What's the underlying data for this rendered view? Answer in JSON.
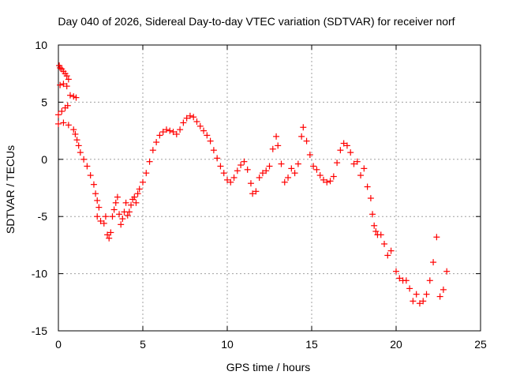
{
  "chart_data": {
    "type": "scatter",
    "title": "Day 040 of 2026, Sidereal Day-to-day VTEC variation (SDTVAR) for receiver norf",
    "xlabel": "GPS time / hours",
    "ylabel": "SDTVAR / TECUs",
    "xlim": [
      0,
      25
    ],
    "ylim": [
      -15,
      10
    ],
    "xticks": [
      0,
      5,
      10,
      15,
      20,
      25
    ],
    "yticks": [
      -15,
      -10,
      -5,
      0,
      5,
      10
    ],
    "grid": true,
    "marker": "+",
    "series": [
      {
        "name": "SDTVAR",
        "color": "#ff0000",
        "points": [
          [
            0.05,
            8.2
          ],
          [
            0.1,
            8.0
          ],
          [
            0.2,
            7.9
          ],
          [
            0.3,
            7.7
          ],
          [
            0.4,
            7.5
          ],
          [
            0.5,
            7.3
          ],
          [
            0.6,
            7.0
          ],
          [
            0.1,
            6.5
          ],
          [
            0.3,
            6.6
          ],
          [
            0.5,
            6.4
          ],
          [
            0.7,
            5.6
          ],
          [
            0.9,
            5.5
          ],
          [
            1.05,
            5.4
          ],
          [
            0.0,
            3.9
          ],
          [
            0.2,
            4.2
          ],
          [
            0.4,
            4.5
          ],
          [
            0.55,
            4.7
          ],
          [
            0.0,
            3.1
          ],
          [
            0.3,
            3.2
          ],
          [
            0.6,
            3.0
          ],
          [
            0.9,
            2.6
          ],
          [
            1.0,
            2.2
          ],
          [
            1.1,
            1.7
          ],
          [
            1.2,
            1.2
          ],
          [
            1.3,
            0.6
          ],
          [
            1.5,
            0.0
          ],
          [
            1.7,
            -0.6
          ],
          [
            1.9,
            -1.4
          ],
          [
            2.1,
            -2.2
          ],
          [
            2.2,
            -3.0
          ],
          [
            2.3,
            -3.6
          ],
          [
            2.4,
            -4.2
          ],
          [
            2.3,
            -5.0
          ],
          [
            2.5,
            -5.4
          ],
          [
            2.7,
            -5.6
          ],
          [
            2.8,
            -5.0
          ],
          [
            2.9,
            -6.6
          ],
          [
            3.0,
            -6.9
          ],
          [
            3.1,
            -6.4
          ],
          [
            3.2,
            -5.0
          ],
          [
            3.3,
            -4.4
          ],
          [
            3.4,
            -3.8
          ],
          [
            3.5,
            -3.3
          ],
          [
            3.6,
            -4.8
          ],
          [
            3.7,
            -5.7
          ],
          [
            3.8,
            -5.2
          ],
          [
            3.9,
            -4.6
          ],
          [
            4.0,
            -3.8
          ],
          [
            4.1,
            -4.9
          ],
          [
            4.2,
            -4.6
          ],
          [
            4.3,
            -4.0
          ],
          [
            4.4,
            -3.5
          ],
          [
            4.5,
            -3.3
          ],
          [
            4.6,
            -3.8
          ],
          [
            4.7,
            -3.0
          ],
          [
            4.8,
            -2.6
          ],
          [
            5.0,
            -2.0
          ],
          [
            5.2,
            -1.2
          ],
          [
            5.4,
            -0.2
          ],
          [
            5.6,
            0.8
          ],
          [
            5.8,
            1.5
          ],
          [
            6.0,
            2.1
          ],
          [
            6.2,
            2.4
          ],
          [
            6.4,
            2.6
          ],
          [
            6.6,
            2.5
          ],
          [
            6.8,
            2.4
          ],
          [
            7.0,
            2.2
          ],
          [
            7.2,
            2.6
          ],
          [
            7.4,
            3.2
          ],
          [
            7.6,
            3.6
          ],
          [
            7.8,
            3.8
          ],
          [
            8.0,
            3.7
          ],
          [
            8.2,
            3.3
          ],
          [
            8.4,
            2.9
          ],
          [
            8.6,
            2.5
          ],
          [
            8.8,
            2.1
          ],
          [
            9.0,
            1.6
          ],
          [
            9.2,
            0.8
          ],
          [
            9.4,
            0.1
          ],
          [
            9.6,
            -0.6
          ],
          [
            9.8,
            -1.2
          ],
          [
            10.0,
            -1.8
          ],
          [
            10.2,
            -2.0
          ],
          [
            10.4,
            -1.6
          ],
          [
            10.6,
            -1.0
          ],
          [
            10.8,
            -0.5
          ],
          [
            11.0,
            -0.2
          ],
          [
            11.2,
            -0.9
          ],
          [
            11.4,
            -2.1
          ],
          [
            11.5,
            -3.0
          ],
          [
            11.7,
            -2.8
          ],
          [
            11.9,
            -1.6
          ],
          [
            12.1,
            -1.2
          ],
          [
            12.3,
            -1.0
          ],
          [
            12.5,
            -0.6
          ],
          [
            12.7,
            0.9
          ],
          [
            12.9,
            2.0
          ],
          [
            13.0,
            1.2
          ],
          [
            13.2,
            -0.4
          ],
          [
            13.4,
            -2.0
          ],
          [
            13.6,
            -1.6
          ],
          [
            13.8,
            -0.8
          ],
          [
            14.0,
            -1.2
          ],
          [
            14.2,
            -0.4
          ],
          [
            14.4,
            2.0
          ],
          [
            14.5,
            2.8
          ],
          [
            14.7,
            1.6
          ],
          [
            14.9,
            0.4
          ],
          [
            15.1,
            -0.6
          ],
          [
            15.3,
            -0.9
          ],
          [
            15.5,
            -1.4
          ],
          [
            15.7,
            -1.8
          ],
          [
            15.9,
            -2.0
          ],
          [
            16.1,
            -1.9
          ],
          [
            16.3,
            -1.5
          ],
          [
            16.5,
            -0.3
          ],
          [
            16.7,
            0.8
          ],
          [
            16.9,
            1.4
          ],
          [
            17.1,
            1.2
          ],
          [
            17.3,
            0.6
          ],
          [
            17.5,
            -0.4
          ],
          [
            17.7,
            -0.2
          ],
          [
            17.9,
            -1.4
          ],
          [
            18.1,
            -0.8
          ],
          [
            18.3,
            -2.4
          ],
          [
            18.5,
            -3.4
          ],
          [
            18.6,
            -4.8
          ],
          [
            18.7,
            -5.8
          ],
          [
            18.8,
            -6.3
          ],
          [
            18.9,
            -6.6
          ],
          [
            19.1,
            -6.6
          ],
          [
            19.3,
            -7.4
          ],
          [
            19.5,
            -8.4
          ],
          [
            19.7,
            -8.0
          ],
          [
            20.0,
            -9.8
          ],
          [
            20.2,
            -10.4
          ],
          [
            20.4,
            -10.6
          ],
          [
            20.6,
            -10.6
          ],
          [
            20.8,
            -11.3
          ],
          [
            21.0,
            -12.4
          ],
          [
            21.2,
            -11.8
          ],
          [
            21.4,
            -12.6
          ],
          [
            21.6,
            -12.4
          ],
          [
            21.8,
            -11.8
          ],
          [
            22.0,
            -10.6
          ],
          [
            22.2,
            -9.0
          ],
          [
            22.4,
            -6.8
          ],
          [
            22.6,
            -12.0
          ],
          [
            22.8,
            -11.4
          ],
          [
            23.0,
            -9.8
          ]
        ]
      }
    ]
  }
}
